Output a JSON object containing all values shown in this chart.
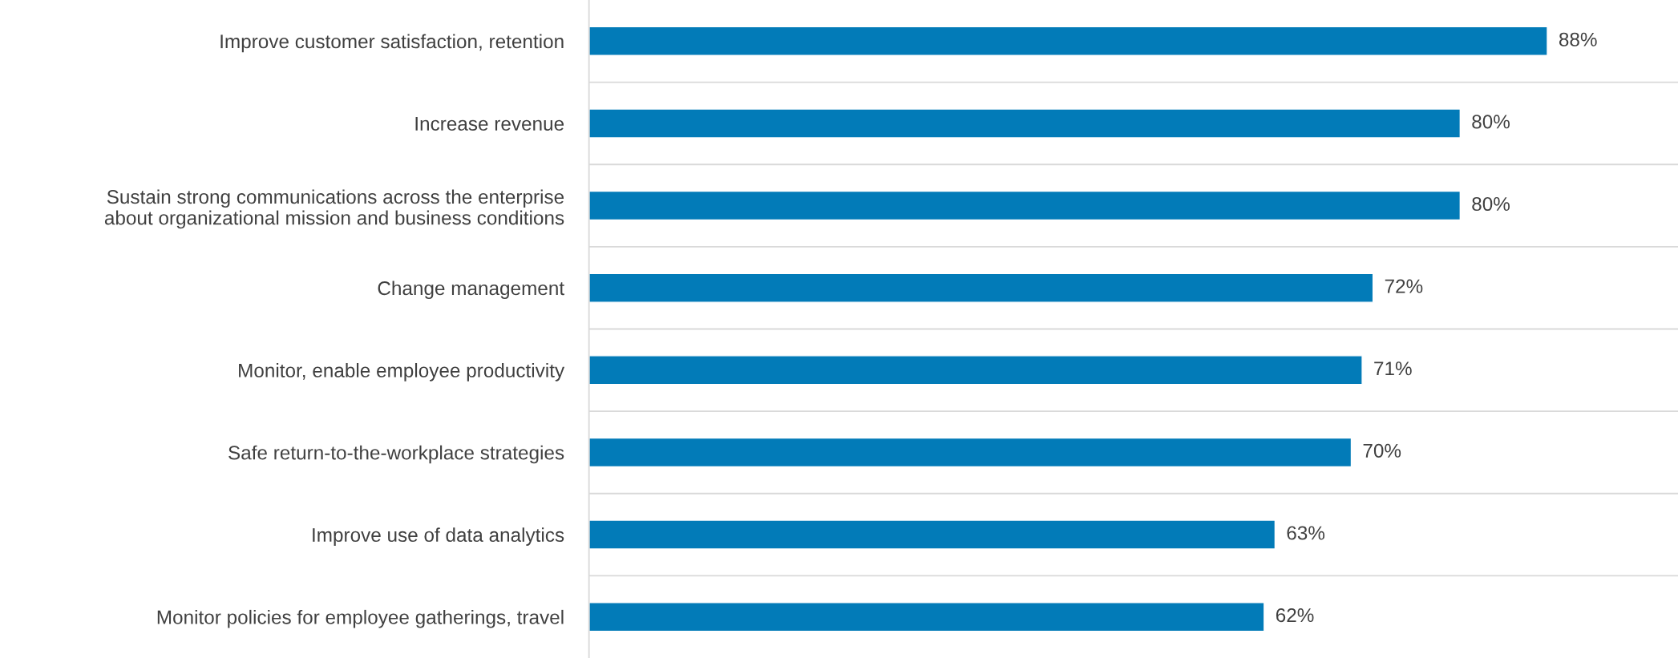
{
  "chart_data": {
    "type": "bar",
    "orientation": "horizontal",
    "categories": [
      "Improve customer satisfaction, retention",
      "Increase revenue",
      "Sustain strong communications across the enterprise\nabout organizational mission and business conditions",
      "Change management",
      "Monitor, enable employee productivity",
      "Safe return-to-the-workplace strategies",
      "Improve use of data analytics",
      "Monitor policies for employee gatherings, travel"
    ],
    "values": [
      88,
      80,
      80,
      72,
      71,
      70,
      63,
      62
    ],
    "value_labels": [
      "88%",
      "80%",
      "80%",
      "72%",
      "71%",
      "70%",
      "63%",
      "62%"
    ],
    "color": "#027bb8",
    "xlim": [
      0,
      100
    ],
    "grid": "y",
    "tick_labels": "y",
    "legend": false
  }
}
